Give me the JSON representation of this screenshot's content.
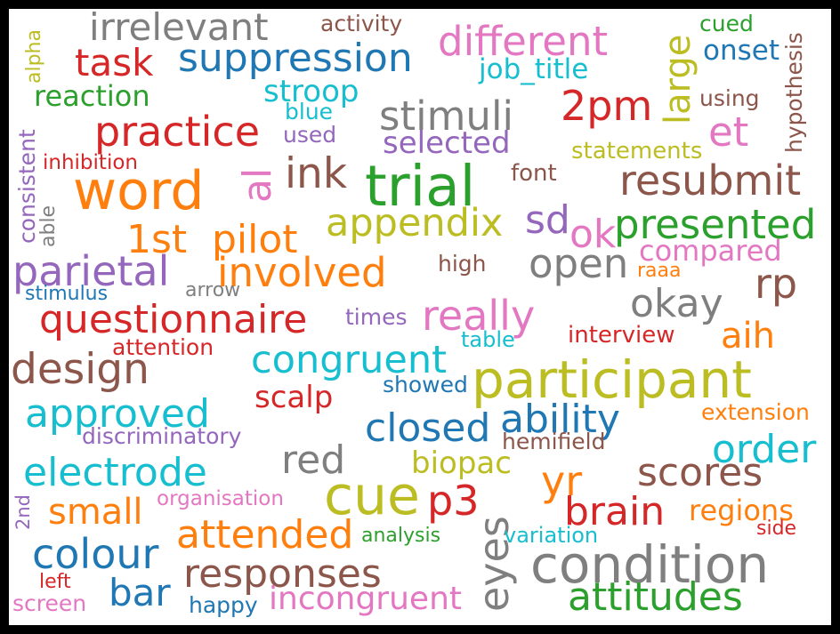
{
  "colors": {
    "background": "#ffffff",
    "frame": "#000000",
    "palette": {
      "blue": "#1f77b4",
      "orange": "#ff7f0e",
      "green": "#2ca02c",
      "red": "#d62728",
      "purple": "#9467bd",
      "brown": "#8c564b",
      "pink": "#e377c2",
      "gray": "#7f7f7f",
      "olive": "#bcbd22",
      "cyan": "#17becf"
    }
  },
  "words": [
    {
      "text": "irrelevant",
      "color": "gray"
    },
    {
      "text": "activity",
      "color": "brown"
    },
    {
      "text": "cued",
      "color": "green"
    },
    {
      "text": "hypothesis",
      "color": "brown"
    },
    {
      "text": "alpha",
      "color": "olive"
    },
    {
      "text": "task",
      "color": "red"
    },
    {
      "text": "suppression",
      "color": "blue"
    },
    {
      "text": "different",
      "color": "pink"
    },
    {
      "text": "large",
      "color": "olive"
    },
    {
      "text": "onset",
      "color": "blue"
    },
    {
      "text": "job_title",
      "color": "cyan"
    },
    {
      "text": "reaction",
      "color": "green"
    },
    {
      "text": "stroop",
      "color": "cyan"
    },
    {
      "text": "using",
      "color": "brown"
    },
    {
      "text": "2pm",
      "color": "red"
    },
    {
      "text": "blue",
      "color": "cyan"
    },
    {
      "text": "stimuli",
      "color": "gray"
    },
    {
      "text": "practice",
      "color": "red"
    },
    {
      "text": "et",
      "color": "pink"
    },
    {
      "text": "used",
      "color": "purple"
    },
    {
      "text": "selected",
      "color": "purple"
    },
    {
      "text": "statements",
      "color": "olive"
    },
    {
      "text": "consistent",
      "color": "purple"
    },
    {
      "text": "inhibition",
      "color": "red"
    },
    {
      "text": "word",
      "color": "orange"
    },
    {
      "text": "al",
      "color": "pink"
    },
    {
      "text": "ink",
      "color": "brown"
    },
    {
      "text": "trial",
      "color": "green"
    },
    {
      "text": "font",
      "color": "brown"
    },
    {
      "text": "resubmit",
      "color": "brown"
    },
    {
      "text": "able",
      "color": "gray"
    },
    {
      "text": "appendix",
      "color": "olive"
    },
    {
      "text": "sd",
      "color": "purple"
    },
    {
      "text": "ok",
      "color": "pink"
    },
    {
      "text": "presented",
      "color": "green"
    },
    {
      "text": "1st",
      "color": "orange"
    },
    {
      "text": "pilot",
      "color": "orange"
    },
    {
      "text": "compared",
      "color": "pink"
    },
    {
      "text": "parietal",
      "color": "purple"
    },
    {
      "text": "involved",
      "color": "orange"
    },
    {
      "text": "high",
      "color": "brown"
    },
    {
      "text": "open",
      "color": "gray"
    },
    {
      "text": "raaa",
      "color": "orange"
    },
    {
      "text": "rp",
      "color": "brown"
    },
    {
      "text": "stimulus",
      "color": "blue"
    },
    {
      "text": "arrow",
      "color": "gray"
    },
    {
      "text": "okay",
      "color": "gray"
    },
    {
      "text": "questionnaire",
      "color": "red"
    },
    {
      "text": "times",
      "color": "purple"
    },
    {
      "text": "really",
      "color": "pink"
    },
    {
      "text": "aih",
      "color": "orange"
    },
    {
      "text": "attention",
      "color": "red"
    },
    {
      "text": "table",
      "color": "cyan"
    },
    {
      "text": "interview",
      "color": "red"
    },
    {
      "text": "design",
      "color": "brown"
    },
    {
      "text": "congruent",
      "color": "cyan"
    },
    {
      "text": "participant",
      "color": "olive"
    },
    {
      "text": "showed",
      "color": "blue"
    },
    {
      "text": "scalp",
      "color": "red"
    },
    {
      "text": "approved",
      "color": "cyan"
    },
    {
      "text": "closed",
      "color": "blue"
    },
    {
      "text": "ability",
      "color": "blue"
    },
    {
      "text": "extension",
      "color": "orange"
    },
    {
      "text": "discriminatory",
      "color": "purple"
    },
    {
      "text": "hemifield",
      "color": "brown"
    },
    {
      "text": "order",
      "color": "cyan"
    },
    {
      "text": "red",
      "color": "gray"
    },
    {
      "text": "biopac",
      "color": "olive"
    },
    {
      "text": "electrode",
      "color": "cyan"
    },
    {
      "text": "scores",
      "color": "brown"
    },
    {
      "text": "yr",
      "color": "orange"
    },
    {
      "text": "cue",
      "color": "olive"
    },
    {
      "text": "p3",
      "color": "red"
    },
    {
      "text": "organisation",
      "color": "pink"
    },
    {
      "text": "2nd",
      "color": "purple"
    },
    {
      "text": "small",
      "color": "orange"
    },
    {
      "text": "brain",
      "color": "red"
    },
    {
      "text": "regions",
      "color": "orange"
    },
    {
      "text": "eyes",
      "color": "gray"
    },
    {
      "text": "side",
      "color": "red"
    },
    {
      "text": "attended",
      "color": "orange"
    },
    {
      "text": "analysis",
      "color": "green"
    },
    {
      "text": "variation",
      "color": "cyan"
    },
    {
      "text": "colour",
      "color": "blue"
    },
    {
      "text": "condition",
      "color": "gray"
    },
    {
      "text": "responses",
      "color": "brown"
    },
    {
      "text": "left",
      "color": "red"
    },
    {
      "text": "bar",
      "color": "blue"
    },
    {
      "text": "incongruent",
      "color": "pink"
    },
    {
      "text": "attitudes",
      "color": "green"
    },
    {
      "text": "screen",
      "color": "pink"
    },
    {
      "text": "happy",
      "color": "blue"
    }
  ]
}
